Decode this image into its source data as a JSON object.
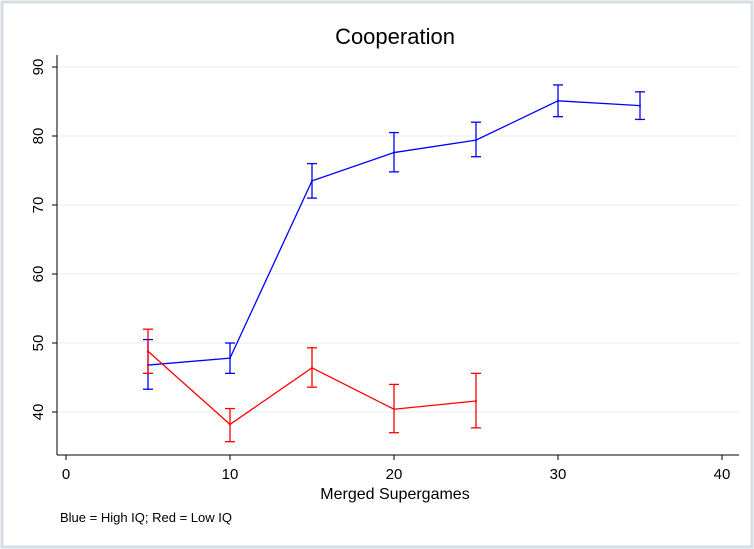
{
  "chart_data": {
    "type": "line",
    "title": "Cooperation",
    "xlabel": "Merged Supergames",
    "ylabel": "",
    "note": "Blue = High IQ; Red = Low IQ",
    "xlim": [
      0,
      40
    ],
    "ylim": [
      34,
      92
    ],
    "xticks": [
      0,
      10,
      20,
      30,
      40
    ],
    "yticks": [
      40,
      50,
      60,
      70,
      80,
      90
    ],
    "grid": true,
    "series": [
      {
        "color": "#0000ff",
        "x": [
          5,
          10,
          15,
          20,
          25,
          30,
          35
        ],
        "y": [
          46.8,
          47.8,
          73.5,
          77.6,
          79.4,
          85.1,
          84.4
        ],
        "err_low": [
          43.3,
          45.6,
          71.0,
          74.8,
          77.0,
          82.8,
          82.4
        ],
        "err_high": [
          50.5,
          50.0,
          76.0,
          80.5,
          82.0,
          87.4,
          86.4
        ]
      },
      {
        "color": "#ff0000",
        "x": [
          5,
          10,
          15,
          20,
          25
        ],
        "y": [
          48.8,
          38.2,
          46.4,
          40.4,
          41.6
        ],
        "err_low": [
          45.6,
          35.7,
          43.6,
          37.0,
          37.7
        ],
        "err_high": [
          52.0,
          40.5,
          49.3,
          44.0,
          45.6
        ]
      }
    ]
  }
}
